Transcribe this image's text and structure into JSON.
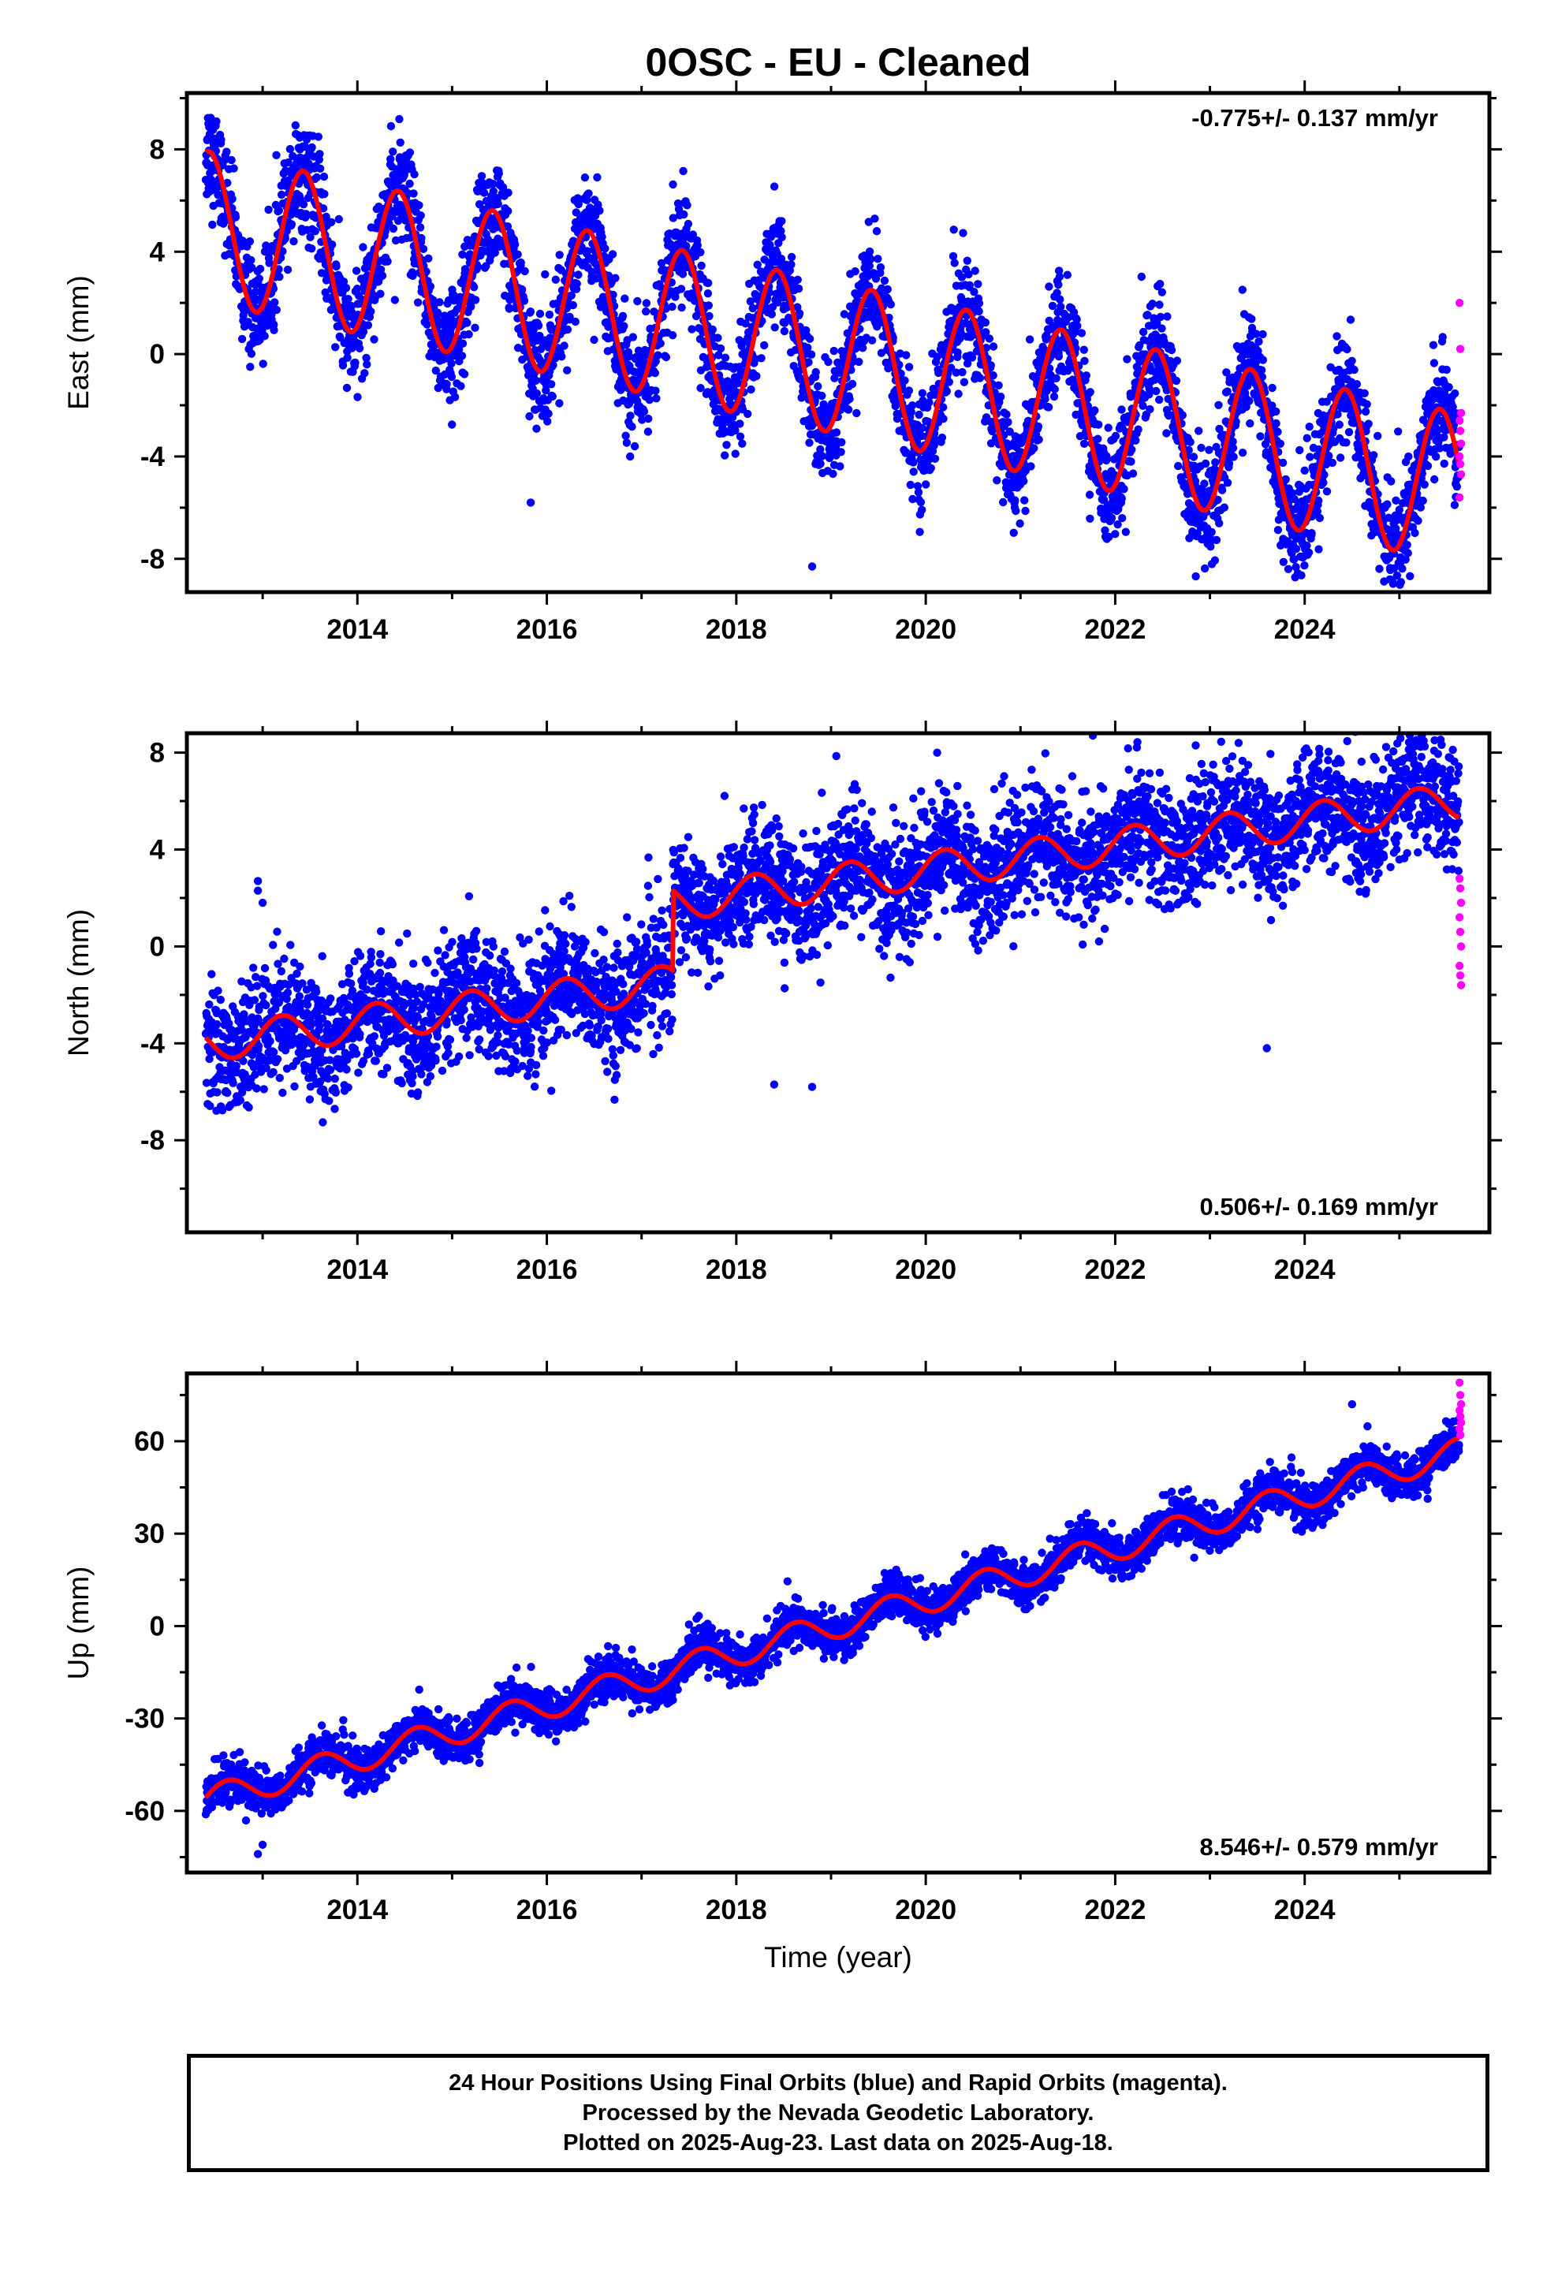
{
  "title": "0OSC  - EU - Cleaned",
  "colors": {
    "final": "#0000ff",
    "rapid": "#ff00ff",
    "model": "#ff0000"
  },
  "chart_data": [
    {
      "type": "scatter",
      "name": "east",
      "ylabel": "East (mm)",
      "xlabel": "",
      "rate": "-0.775+/- 0.137 mm/yr",
      "rate_position": "top-right",
      "xlim": [
        2012.2,
        2025.95
      ],
      "ylim": [
        -9.3,
        10.2
      ],
      "xticks": [
        2014,
        2016,
        2018,
        2020,
        2022,
        2024
      ],
      "yticks": [
        -8,
        -4,
        0,
        4,
        8
      ],
      "model": {
        "start": 2012.4,
        "end": 2025.63,
        "intercept": 5.0,
        "slope": -0.775,
        "annual_amp": 2.95,
        "peak_phase": 0.43,
        "noise_sd": 1.05
      },
      "outliers": [
        [
          2015.83,
          -5.8
        ],
        [
          2018.8,
          -8.3
        ],
        [
          2024.9,
          -8.8
        ]
      ],
      "rapid_y": [
        2.0,
        0.2,
        -2.3,
        -2.6,
        -3.0,
        -3.5,
        -4.0,
        -4.3,
        -4.7,
        -5.6
      ]
    },
    {
      "type": "scatter",
      "name": "north",
      "ylabel": "North (mm)",
      "xlabel": "",
      "rate": "0.506+/- 0.169 mm/yr",
      "rate_position": "bottom-right",
      "xlim": [
        2012.2,
        2025.95
      ],
      "ylim": [
        -11.8,
        8.8
      ],
      "xticks": [
        2014,
        2016,
        2018,
        2020,
        2022,
        2024
      ],
      "yticks": [
        -8,
        -4,
        0,
        4,
        8
      ],
      "model": {
        "start": 2012.4,
        "end": 2025.63,
        "intercept": -4.0,
        "slope": 0.506,
        "annual_amp": 0.75,
        "peak_phase": 0.2,
        "noise_sd": 1.25,
        "step_time": 2017.33,
        "step_size": 3.3
      },
      "outliers": [
        [
          2012.95,
          2.7
        ],
        [
          2012.95,
          2.3
        ],
        [
          2013.0,
          1.8
        ],
        [
          2018.4,
          -5.7
        ],
        [
          2018.8,
          -5.8
        ],
        [
          2023.6,
          -4.2
        ],
        [
          2022.85,
          8.3
        ],
        [
          2024.0,
          8.1
        ]
      ],
      "rapid_y": [
        2.8,
        2.4,
        1.8,
        1.2,
        0.6,
        0.0,
        -0.8,
        -1.2,
        -1.6
      ]
    },
    {
      "type": "scatter",
      "name": "up",
      "ylabel": "Up (mm)",
      "xlabel": "Time (year)",
      "rate": "8.546+/- 0.579 mm/yr",
      "rate_position": "bottom-right",
      "xlim": [
        2012.2,
        2025.95
      ],
      "ylim": [
        -80,
        82
      ],
      "xticks": [
        2014,
        2016,
        2018,
        2020,
        2022,
        2024
      ],
      "yticks": [
        -60,
        -30,
        0,
        30,
        60
      ],
      "model": {
        "start": 2012.4,
        "end": 2025.63,
        "intercept": -56.5,
        "slope": 8.546,
        "annual_amp": 4.5,
        "peak_phase": 0.62,
        "noise_sd": 3.4
      },
      "outliers": [
        [
          2012.95,
          -74
        ],
        [
          2013.0,
          -71
        ],
        [
          2024.5,
          72
        ]
      ],
      "rapid_y": [
        79,
        75,
        72,
        70,
        68,
        66,
        64,
        62
      ]
    }
  ],
  "footer": {
    "line1": "24 Hour Positions Using Final Orbits (blue) and Rapid Orbits (magenta).",
    "line2": "Processed by the Nevada Geodetic Laboratory.",
    "line3": "Plotted on 2025-Aug-23. Last data on 2025-Aug-18."
  }
}
